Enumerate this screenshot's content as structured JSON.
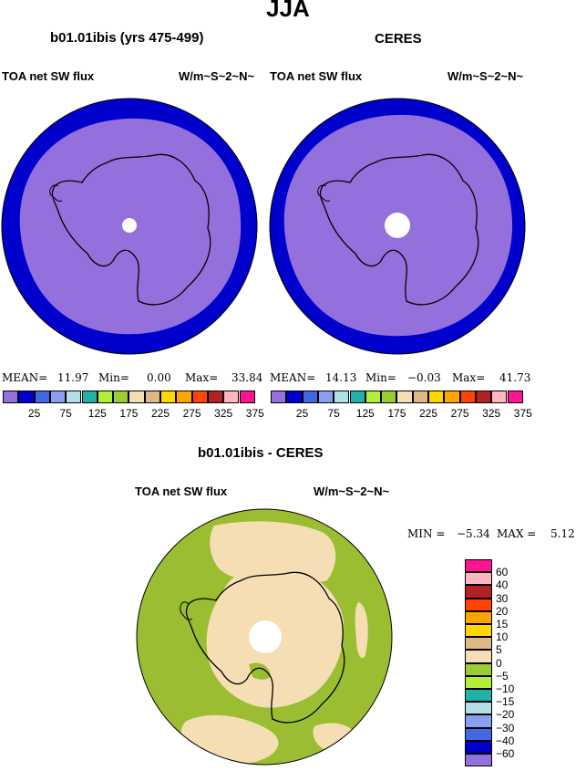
{
  "page_title": "JJA",
  "panels": [
    {
      "title": "b01.01ibis (yrs 475-499)",
      "variable": "TOA net SW flux",
      "units": "W/m~S~2~N~",
      "stats": {
        "mean_label": "MEAN=",
        "mean": "11.97",
        "min_label": "Min=",
        "min": "0.00",
        "max_label": "Max=",
        "max": "33.84"
      }
    },
    {
      "title": "CERES",
      "variable": "TOA net SW flux",
      "units": "W/m~S~2~N~",
      "stats": {
        "mean_label": "MEAN=",
        "mean": "14.13",
        "min_label": "Min=",
        "min": "−0.03",
        "max_label": "Max=",
        "max": "41.73"
      }
    }
  ],
  "difference_panel": {
    "title": "b01.01ibis - CERES",
    "variable": "TOA net SW flux",
    "units": "W/m~S~2~N~",
    "stats": {
      "min_label": "MIN =",
      "min": "−5.34",
      "max_label": "MAX =",
      "max": "5.12"
    }
  },
  "chart_data": [
    {
      "type": "heatmap",
      "projection": "south-polar-stereographic",
      "title": "b01.01ibis (yrs 475-499)",
      "variable": "TOA net SW flux",
      "units": "W/m~S~2~N~",
      "colorbar": {
        "ticks": [
          "25",
          "75",
          "125",
          "175",
          "225",
          "275",
          "325",
          "375"
        ],
        "colors": [
          "#9370db",
          "#0000cd",
          "#4169e1",
          "#87a0f0",
          "#b0e0e6",
          "#20b2aa",
          "#b3ee3a",
          "#9acd32",
          "#f5deb3",
          "#deb887",
          "#ffd700",
          "#ffa500",
          "#ff4500",
          "#b22222",
          "#ffb6c1",
          "#ff1493"
        ],
        "placement": "bottom"
      },
      "regions": [
        {
          "name": "outer ring",
          "range": "0-25",
          "color": "#0000cd"
        },
        {
          "name": "interior",
          "range": "<25",
          "color": "#9370db"
        }
      ]
    },
    {
      "type": "heatmap",
      "projection": "south-polar-stereographic",
      "title": "CERES",
      "variable": "TOA net SW flux",
      "units": "W/m~S~2~N~",
      "colorbar": {
        "ticks": [
          "25",
          "75",
          "125",
          "175",
          "225",
          "275",
          "325",
          "375"
        ],
        "colors": [
          "#9370db",
          "#0000cd",
          "#4169e1",
          "#87a0f0",
          "#b0e0e6",
          "#20b2aa",
          "#b3ee3a",
          "#9acd32",
          "#f5deb3",
          "#deb887",
          "#ffd700",
          "#ffa500",
          "#ff4500",
          "#b22222",
          "#ffb6c1",
          "#ff1493"
        ],
        "placement": "bottom"
      }
    },
    {
      "type": "heatmap",
      "projection": "south-polar-stereographic",
      "title": "b01.01ibis - CERES",
      "variable": "TOA net SW flux",
      "units": "W/m~S~2~N~",
      "colorbar": {
        "ticks": [
          "60",
          "40",
          "30",
          "20",
          "15",
          "10",
          "5",
          "0",
          "−5",
          "−10",
          "−15",
          "−20",
          "−30",
          "−40",
          "−60"
        ],
        "colors": [
          "#ff1493",
          "#ffb6c1",
          "#b22222",
          "#ff4500",
          "#ffa500",
          "#ffd700",
          "#deb887",
          "#f5deb3",
          "#9acd32",
          "#b3ee3a",
          "#20b2aa",
          "#b0e0e6",
          "#87a0f0",
          "#4169e1",
          "#0000cd",
          "#9370db"
        ],
        "placement": "right"
      }
    }
  ],
  "colors": {
    "polar_ring": "#0000cd",
    "polar_interior": "#9370db",
    "diff_background": "#9abd32",
    "diff_positive": "#f5deb3"
  }
}
